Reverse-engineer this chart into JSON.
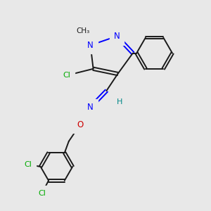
{
  "bg_color": "#e8e8e8",
  "bond_color": "#1a1a1a",
  "N_color": "#0000ff",
  "O_color": "#cc0000",
  "Cl_color": "#00aa00",
  "H_color": "#008888",
  "figsize": [
    3.0,
    3.0
  ],
  "dpi": 100,
  "xlim": [
    -0.05,
    1.05
  ],
  "ylim": [
    -0.05,
    1.05
  ]
}
